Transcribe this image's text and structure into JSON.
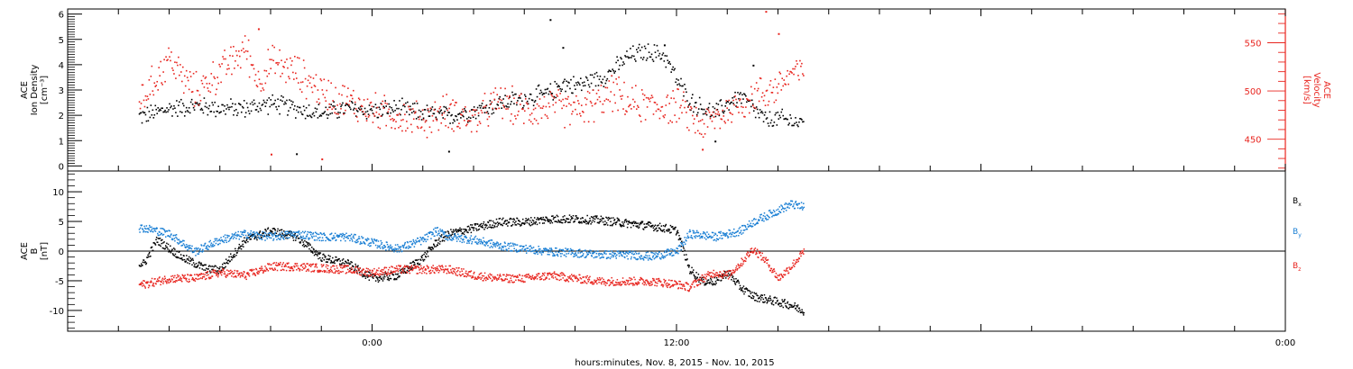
{
  "chart_data": [
    {
      "type": "scatter",
      "panel": "top",
      "left_axis": {
        "label_lines": [
          "ACE",
          "Ion Density",
          "[cm⁻³]"
        ],
        "ticks": [
          "0",
          "1",
          "2",
          "3",
          "4",
          "5",
          "6"
        ],
        "ylim": [
          -0.2,
          6.2
        ]
      },
      "right_axis": {
        "label_lines": [
          "ACE",
          "Velocity",
          "[km/s]"
        ],
        "ticks": [
          "450",
          "500",
          "550"
        ],
        "ylim": [
          417,
          585
        ],
        "color": "#e8251f"
      },
      "series": [
        {
          "axis": "left",
          "color": "#000000",
          "points": [
            [
              -9,
              2.0
            ],
            [
              -8,
              2.3
            ],
            [
              -7,
              2.4
            ],
            [
              -6,
              2.3
            ],
            [
              -5,
              2.3
            ],
            [
              -4,
              2.5
            ],
            [
              -3,
              2.3
            ],
            [
              -2,
              2.1
            ],
            [
              -1,
              2.3
            ],
            [
              0,
              2.2
            ],
            [
              1,
              2.3
            ],
            [
              2,
              2.1
            ],
            [
              3,
              2.0
            ],
            [
              4,
              2.2
            ],
            [
              5,
              2.5
            ],
            [
              6,
              2.7
            ],
            [
              7,
              2.9
            ],
            [
              7.5,
              3.3
            ],
            [
              8,
              3.2
            ],
            [
              9,
              3.5
            ],
            [
              9.5,
              3.8
            ],
            [
              10,
              4.3
            ],
            [
              10.5,
              4.5
            ],
            [
              11,
              4.5
            ],
            [
              11.5,
              4.4
            ],
            [
              12,
              3.4
            ],
            [
              12.5,
              2.6
            ],
            [
              13,
              2.3
            ],
            [
              13.5,
              2.1
            ],
            [
              14,
              2.5
            ],
            [
              14.5,
              2.8
            ],
            [
              15,
              2.3
            ],
            [
              15.5,
              1.8
            ],
            [
              16,
              1.9
            ],
            [
              16.5,
              1.8
            ],
            [
              17,
              1.7
            ]
          ]
        },
        {
          "axis": "right",
          "color": "#e8251f",
          "points": [
            [
              -9,
              495
            ],
            [
              -8,
              535
            ],
            [
              -7.5,
              515
            ],
            [
              -7,
              500
            ],
            [
              -6,
              520
            ],
            [
              -5,
              545
            ],
            [
              -4.5,
              510
            ],
            [
              -4,
              530
            ],
            [
              -3,
              520
            ],
            [
              -2,
              500
            ],
            [
              -1,
              490
            ],
            [
              0,
              480
            ],
            [
              1,
              475
            ],
            [
              2,
              470
            ],
            [
              3,
              480
            ],
            [
              4,
              470
            ],
            [
              5,
              490
            ],
            [
              6,
              480
            ],
            [
              7,
              485
            ],
            [
              8,
              480
            ],
            [
              9,
              490
            ],
            [
              9.5,
              500
            ],
            [
              10,
              488
            ],
            [
              11,
              485
            ],
            [
              12,
              485
            ],
            [
              13,
              465
            ],
            [
              14,
              480
            ],
            [
              15,
              495
            ],
            [
              15.5,
              500
            ],
            [
              16,
              505
            ],
            [
              16.5,
              520
            ],
            [
              17,
              518
            ]
          ]
        }
      ],
      "outliers": {
        "left": [
          [
            7,
            5.8
          ],
          [
            7.5,
            4.7
          ],
          [
            3,
            0.6
          ],
          [
            -3,
            0.5
          ],
          [
            11.5,
            4.8
          ],
          [
            13.5,
            1.0
          ],
          [
            15,
            4.0
          ]
        ],
        "right": [
          [
            -4.5,
            565
          ],
          [
            -4,
            435
          ],
          [
            -2,
            430
          ],
          [
            15.5,
            583
          ],
          [
            16,
            560
          ],
          [
            13,
            440
          ]
        ]
      }
    },
    {
      "type": "line",
      "panel": "bottom",
      "axis": {
        "label_lines": [
          "ACE",
          "B",
          "[nT]"
        ],
        "ticks": [
          "-10",
          "-5",
          "0",
          "5",
          "10"
        ],
        "ylim": [
          -13.5,
          13.5
        ]
      },
      "x_ticks": [
        "0:00",
        "12:00",
        "0:00"
      ],
      "xlabel": "hours:minutes, Nov.  8, 2015 - Nov. 10, 2015",
      "xlim": [
        -12,
        36
      ],
      "series": [
        {
          "name": "B",
          "sub": "x",
          "color": "#000000",
          "points": [
            [
              -9,
              -2.0
            ],
            [
              -8.5,
              2.0
            ],
            [
              -7.5,
              -1.0
            ],
            [
              -6.5,
              -3.0
            ],
            [
              -6,
              -3.0
            ],
            [
              -5,
              2.0
            ],
            [
              -4,
              3.5
            ],
            [
              -3,
              2.5
            ],
            [
              -2,
              -1.0
            ],
            [
              -1,
              -2.0
            ],
            [
              0,
              -4.5
            ],
            [
              1,
              -4.0
            ],
            [
              2,
              -1.0
            ],
            [
              2.5,
              1.5
            ],
            [
              3,
              3.0
            ],
            [
              4,
              4.0
            ],
            [
              5,
              5.0
            ],
            [
              6,
              5.0
            ],
            [
              7,
              5.5
            ],
            [
              8,
              5.5
            ],
            [
              9,
              5.3
            ],
            [
              10,
              4.8
            ],
            [
              11,
              4.3
            ],
            [
              11.5,
              4.0
            ],
            [
              12,
              3.5
            ],
            [
              12.5,
              -3.0
            ],
            [
              13,
              -5.0
            ],
            [
              13.5,
              -5.0
            ],
            [
              14,
              -3.5
            ],
            [
              14.5,
              -6.0
            ],
            [
              15,
              -7.5
            ],
            [
              16,
              -8.5
            ],
            [
              16.5,
              -9.0
            ],
            [
              17,
              -10.0
            ]
          ]
        },
        {
          "name": "B",
          "sub": "y",
          "color": "#1a7fd4",
          "points": [
            [
              -9,
              4.0
            ],
            [
              -8,
              3.0
            ],
            [
              -7,
              0.0
            ],
            [
              -6,
              2.0
            ],
            [
              -5,
              3.0
            ],
            [
              -4,
              2.5
            ],
            [
              -3,
              3.0
            ],
            [
              -2,
              2.5
            ],
            [
              -1,
              2.5
            ],
            [
              0,
              1.5
            ],
            [
              1,
              0.5
            ],
            [
              2,
              2.0
            ],
            [
              2.5,
              3.5
            ],
            [
              3,
              2.5
            ],
            [
              4,
              2.0
            ],
            [
              5,
              1.0
            ],
            [
              6,
              0.5
            ],
            [
              7,
              0.0
            ],
            [
              8,
              -0.2
            ],
            [
              9,
              -0.5
            ],
            [
              10,
              -0.5
            ],
            [
              11,
              -0.8
            ],
            [
              12,
              0.0
            ],
            [
              12.5,
              3.0
            ],
            [
              13,
              2.8
            ],
            [
              13.5,
              2.5
            ],
            [
              14,
              3.0
            ],
            [
              14.5,
              3.5
            ],
            [
              15,
              5.0
            ],
            [
              15.5,
              6.0
            ],
            [
              16,
              7.0
            ],
            [
              16.5,
              8.0
            ],
            [
              17,
              7.5
            ]
          ]
        },
        {
          "name": "B",
          "sub": "z",
          "color": "#e8251f",
          "points": [
            [
              -9,
              -5.5
            ],
            [
              -8,
              -4.5
            ],
            [
              -7,
              -4.5
            ],
            [
              -6,
              -3.5
            ],
            [
              -5,
              -4.0
            ],
            [
              -4,
              -2.5
            ],
            [
              -3,
              -2.5
            ],
            [
              -2,
              -2.8
            ],
            [
              -1,
              -3.0
            ],
            [
              0,
              -3.5
            ],
            [
              1,
              -3.0
            ],
            [
              2,
              -3.0
            ],
            [
              3,
              -3.0
            ],
            [
              4,
              -4.0
            ],
            [
              5,
              -4.5
            ],
            [
              6,
              -4.5
            ],
            [
              7,
              -4.0
            ],
            [
              8,
              -4.5
            ],
            [
              9,
              -5.0
            ],
            [
              10,
              -5.0
            ],
            [
              11,
              -5.0
            ],
            [
              12,
              -5.5
            ],
            [
              12.5,
              -6.0
            ],
            [
              13,
              -4.5
            ],
            [
              13.5,
              -3.5
            ],
            [
              14,
              -4.0
            ],
            [
              14.5,
              -2.0
            ],
            [
              15,
              0.5
            ],
            [
              15.5,
              -1.5
            ],
            [
              16,
              -4.5
            ],
            [
              16.5,
              -2.5
            ],
            [
              17,
              0.0
            ]
          ]
        }
      ]
    }
  ]
}
